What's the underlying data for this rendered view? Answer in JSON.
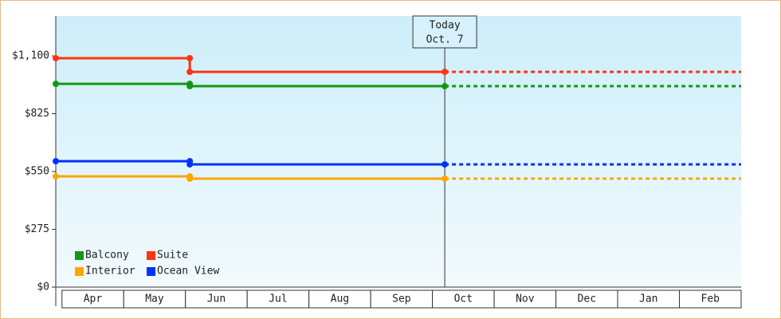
{
  "chart_data": {
    "type": "step-line",
    "categories": [
      "Apr",
      "May",
      "Jun",
      "Jul",
      "Aug",
      "Sep",
      "Oct",
      "Nov",
      "Dec",
      "Jan",
      "Feb"
    ],
    "xlim": [
      -0.1,
      11
    ],
    "ylim": [
      0,
      1290
    ],
    "yticks": [
      {
        "value": 0,
        "label": "$0"
      },
      {
        "value": 275,
        "label": "$275"
      },
      {
        "value": 550,
        "label": "$550"
      },
      {
        "value": 825,
        "label": "$825"
      },
      {
        "value": 1100,
        "label": "$1,100"
      }
    ],
    "annotation": {
      "x": 6.2,
      "lines": [
        "Today",
        "Oct. 7"
      ]
    },
    "legend": "lower-left",
    "series": [
      {
        "name": "Balcony",
        "color": "#119911",
        "x": [
          -0.1,
          2.07,
          2.07,
          6.2
        ],
        "values": [
          967,
          967,
          956,
          956
        ]
      },
      {
        "name": "Suite",
        "color": "#ff3311",
        "x": [
          -0.1,
          2.07,
          2.07,
          6.2
        ],
        "values": [
          1089,
          1089,
          1024,
          1024
        ]
      },
      {
        "name": "Interior",
        "color": "#ffa500",
        "x": [
          -0.1,
          2.07,
          2.07,
          6.2
        ],
        "values": [
          527,
          527,
          516,
          516
        ]
      },
      {
        "name": "Ocean View",
        "color": "#0033ff",
        "x": [
          -0.1,
          2.07,
          2.07,
          6.2
        ],
        "values": [
          599,
          599,
          584,
          584
        ]
      }
    ]
  }
}
